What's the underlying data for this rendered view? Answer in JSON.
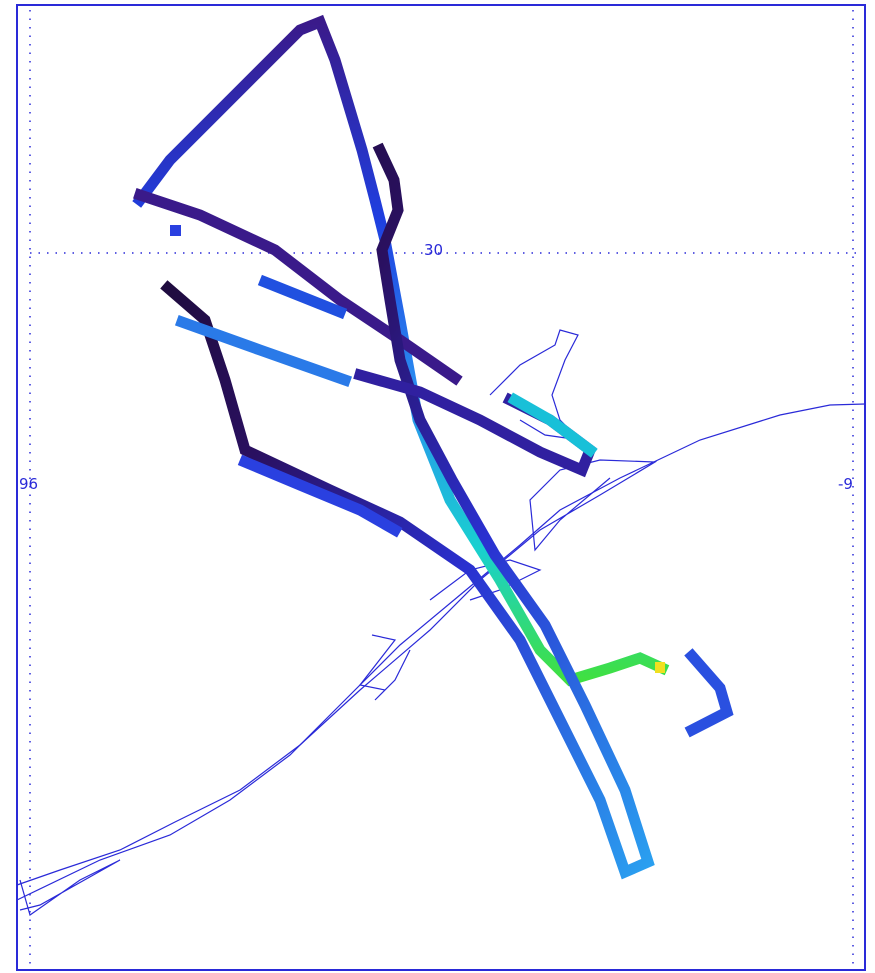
{
  "map": {
    "labels": {
      "lat": "30",
      "lon_left": "96",
      "lon_right": "-9"
    }
  }
}
